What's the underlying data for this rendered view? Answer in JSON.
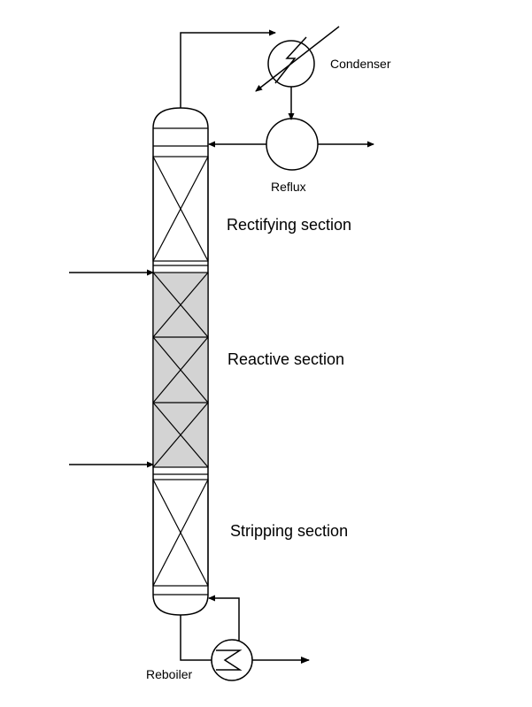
{
  "labels": {
    "condenser": "Condenser",
    "reflux": "Reflux",
    "rectifying": "Rectifying section",
    "reactive": "Reactive section",
    "stripping": "Stripping section",
    "reboiler": "Reboiler"
  },
  "colors": {
    "line": "#000000",
    "reactive_fill": "#d3d3d3",
    "background": "#ffffff"
  }
}
